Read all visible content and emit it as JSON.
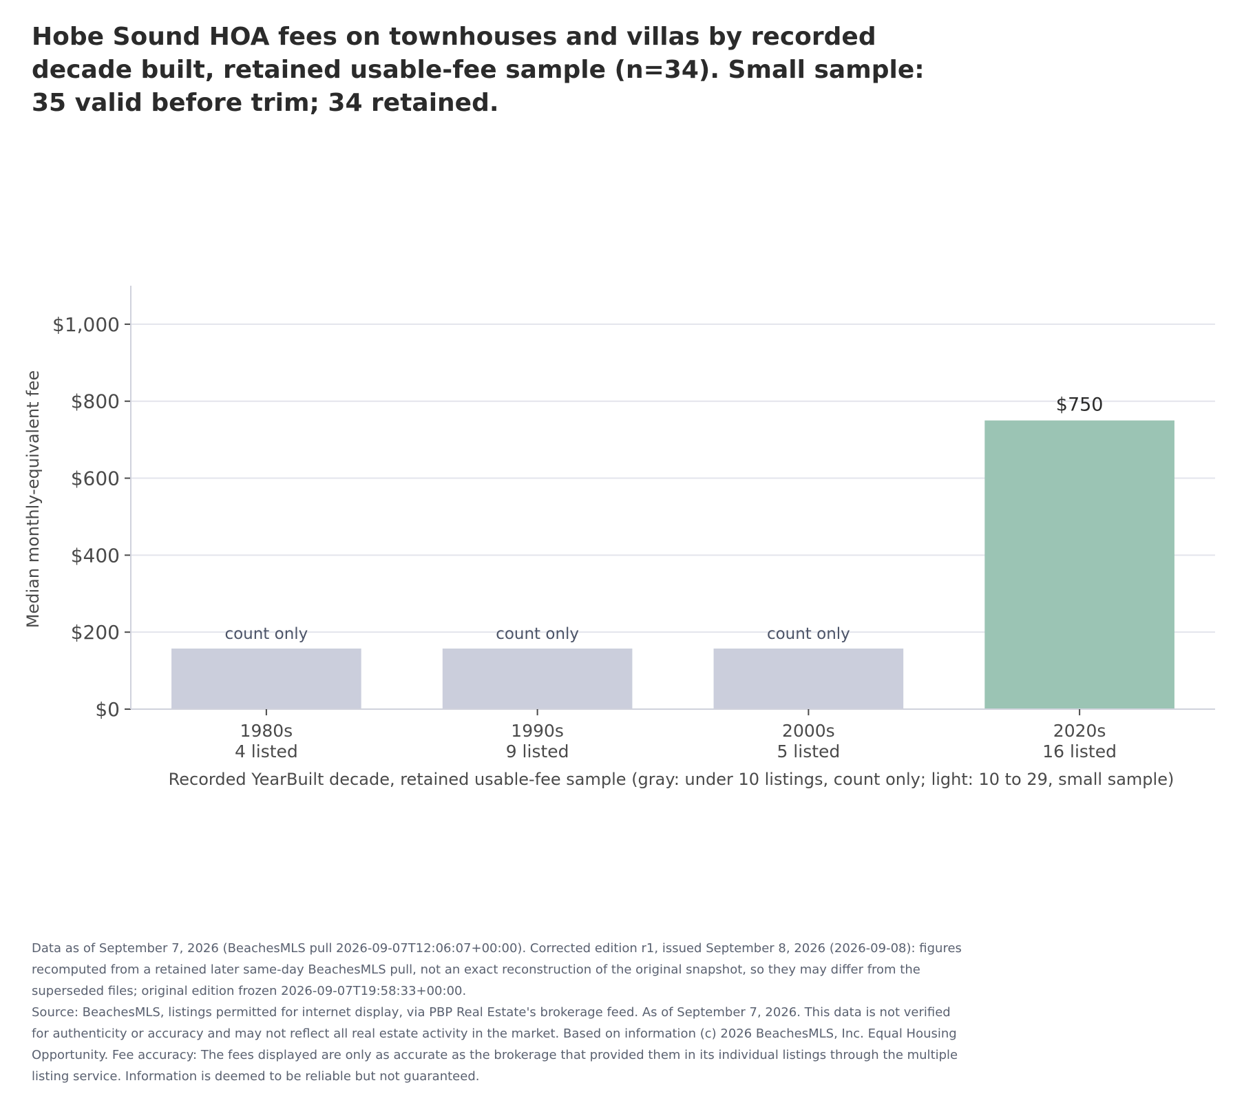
{
  "chart_data": {
    "type": "bar",
    "title": "Hobe Sound HOA fees on townhouses and villas by recorded decade built, retained usable-fee sample (n=34). Small sample: 35 valid before trim; 34 retained.",
    "ylabel": "Median monthly-equivalent fee",
    "xlabel": "Recorded YearBuilt decade, retained usable-fee sample (gray: under 10 listings, count only; light: 10 to 29, small sample)",
    "ylim": [
      0,
      1100
    ],
    "yticks": [
      0,
      200,
      400,
      600,
      800,
      1000
    ],
    "ytick_labels": [
      "$0",
      "$200",
      "$400",
      "$600",
      "$800",
      "$1,000"
    ],
    "grid": true,
    "categories": [
      "1980s",
      "1990s",
      "2000s",
      "2020s"
    ],
    "listed_labels": [
      "4 listed",
      "9 listed",
      "5 listed",
      "16 listed"
    ],
    "values": [
      null,
      null,
      null,
      750
    ],
    "placeholder_height": 88,
    "bar_labels": [
      "count only",
      "count only",
      "count only",
      "$750"
    ],
    "bar_status": [
      "count-only",
      "count-only",
      "count-only",
      "small-sample"
    ],
    "colors": {
      "count_only": "#cbcedc",
      "small_sample": "#9bc4b4",
      "grid": "#e3e4ec",
      "axis": "#d0d2dc",
      "tick_text": "#4a4a4a",
      "placeholder_label": "#4c5468",
      "value_label": "#2b2b2b"
    }
  },
  "footer": {
    "edition_note": "Data as of September 7, 2026 (BeachesMLS pull 2026-09-07T12:06:07+00:00). Corrected edition r1, issued September 8, 2026 (2026-09-08): figures recomputed from a retained later same-day BeachesMLS pull, not an exact reconstruction of the original snapshot, so they may differ from the superseded files; original edition frozen 2026-09-07T19:58:33+00:00.",
    "source_note": "Source: BeachesMLS, listings permitted for internet display, via PBP Real Estate's brokerage feed. As of September 7, 2026. This data is not verified for authenticity or accuracy and may not reflect all real estate activity in the market. Based on information (c) 2026 BeachesMLS, Inc. Equal Housing Opportunity. Fee accuracy: The fees displayed are only as accurate as the brokerage that provided them in its individual listings through the multiple listing service. Information is deemed to be reliable but not guaranteed."
  }
}
